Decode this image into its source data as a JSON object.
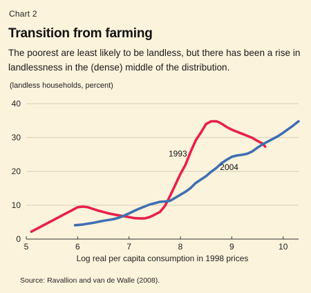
{
  "chart_label": "Chart 2",
  "chart_data": {
    "type": "line",
    "title": "Transition from farming",
    "subtitle": "The poorest are least likely to be landless, but there has been a rise in landlessness in the (dense) middle of the distribution.",
    "ylabel": "(landless households, percent)",
    "xlabel": "Log real per capita consumption in 1998 prices",
    "xlim": [
      5,
      10.3
    ],
    "ylim": [
      0,
      40
    ],
    "xticks": [
      5,
      6,
      7,
      8,
      9,
      10
    ],
    "yticks": [
      0,
      10,
      20,
      30,
      40
    ],
    "grid": "horizontal",
    "series": [
      {
        "name": "1993",
        "color": "#e8204a",
        "x": [
          5.1,
          5.3,
          5.5,
          5.7,
          5.9,
          6.0,
          6.1,
          6.2,
          6.4,
          6.6,
          6.8,
          7.0,
          7.1,
          7.2,
          7.3,
          7.4,
          7.5,
          7.6,
          7.7,
          7.8,
          7.9,
          8.0,
          8.1,
          8.2,
          8.3,
          8.4,
          8.5,
          8.6,
          8.7,
          8.75,
          8.8,
          8.9,
          9.0,
          9.2,
          9.4,
          9.5,
          9.6,
          9.65
        ],
        "y": [
          2.2,
          3.8,
          5.4,
          7.0,
          8.6,
          9.4,
          9.6,
          9.4,
          8.4,
          7.6,
          7.0,
          6.5,
          6.2,
          6.1,
          6.1,
          6.5,
          7.2,
          8.0,
          9.8,
          12.8,
          16.0,
          19.2,
          22.0,
          25.8,
          29.2,
          31.5,
          34.0,
          34.8,
          34.8,
          34.5,
          34.1,
          33.1,
          32.3,
          31.1,
          29.9,
          29.0,
          28.2,
          27.3
        ]
      },
      {
        "name": "2004",
        "color": "#3f6fb2",
        "x": [
          5.95,
          6.1,
          6.3,
          6.5,
          6.7,
          6.8,
          6.9,
          7.0,
          7.1,
          7.2,
          7.3,
          7.4,
          7.5,
          7.6,
          7.7,
          7.8,
          7.9,
          8.0,
          8.1,
          8.2,
          8.3,
          8.4,
          8.5,
          8.6,
          8.7,
          8.8,
          8.9,
          9.0,
          9.1,
          9.2,
          9.3,
          9.4,
          9.5,
          9.6,
          9.7,
          9.8,
          9.9,
          10.0,
          10.1,
          10.2,
          10.3
        ],
        "y": [
          4.1,
          4.3,
          4.8,
          5.4,
          5.9,
          6.3,
          6.9,
          7.6,
          8.3,
          9.0,
          9.6,
          10.2,
          10.6,
          11.0,
          11.1,
          11.3,
          12.2,
          13.1,
          14.0,
          15.1,
          16.6,
          17.6,
          18.6,
          19.9,
          21.0,
          22.4,
          23.4,
          24.3,
          24.7,
          24.9,
          25.2,
          25.9,
          27.0,
          28.0,
          28.8,
          29.6,
          30.4,
          31.4,
          32.5,
          33.6,
          34.8
        ]
      }
    ],
    "annotations": [
      {
        "text": "1993",
        "x": 7.95,
        "y": 25.2
      },
      {
        "text": "2004",
        "x": 8.95,
        "y": 21.2
      }
    ]
  },
  "source": "Source: Ravallion and van de Walle (2008)."
}
